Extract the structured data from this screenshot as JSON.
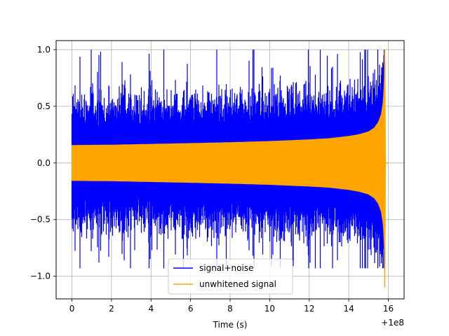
{
  "chart_data": {
    "type": "line",
    "title": "",
    "xlabel": "Time (s)",
    "ylabel": "",
    "x_offset_label": "+1e8",
    "xlim": [
      -0.8,
      16.8
    ],
    "ylim": [
      -1.2,
      1.08
    ],
    "grid": true,
    "legend_position": "lower-center",
    "x_ticks": [
      0,
      2,
      4,
      6,
      8,
      10,
      12,
      14,
      16
    ],
    "x_tick_labels": [
      "0",
      "2",
      "4",
      "6",
      "8",
      "10",
      "12",
      "14",
      "16"
    ],
    "y_ticks": [
      -1.0,
      -0.5,
      0.0,
      0.5,
      1.0
    ],
    "y_tick_labels": [
      "−1.0",
      "−0.5",
      "0.0",
      "0.5",
      "1.0"
    ],
    "series": [
      {
        "name": "signal+noise",
        "color": "#0000ff",
        "x_range": [
          0,
          15.8
        ],
        "description_values": {
          "typical_peak_positive": 0.6,
          "max_value": 1.0,
          "min_value": -0.93
        }
      },
      {
        "name": "unwhitened signal",
        "color": "#ffa500",
        "x_range": [
          0,
          16.0
        ],
        "envelope": {
          "t": [
            0,
            2,
            4,
            6,
            8,
            10,
            12,
            13,
            14,
            14.5,
            15,
            15.3,
            15.5,
            15.65,
            15.75,
            15.8,
            15.82,
            15.84,
            15.86
          ],
          "amplitude": [
            0.155,
            0.158,
            0.165,
            0.172,
            0.18,
            0.19,
            0.205,
            0.215,
            0.235,
            0.25,
            0.275,
            0.31,
            0.36,
            0.43,
            0.55,
            0.75,
            1.0,
            0.85,
            0.0
          ]
        },
        "max_value": 1.0,
        "min_value": -1.1
      }
    ]
  }
}
